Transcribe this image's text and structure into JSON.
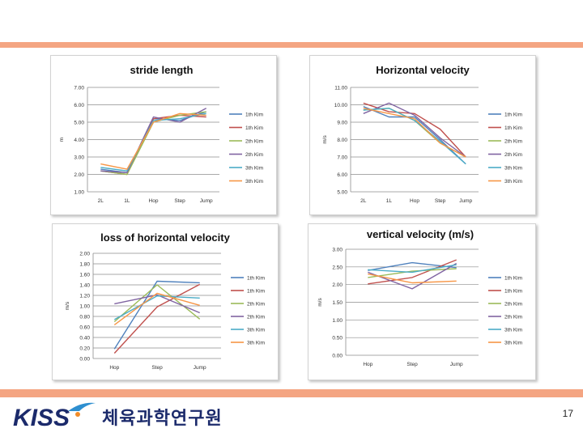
{
  "colors": {
    "top_bar": "#f4a582",
    "bottom_bar": "#f4a582",
    "logo_blue": "#1b2a6b",
    "logo_accent": "#2e8fd0",
    "logo_orange": "#f28c28",
    "series": [
      "#4f81bd",
      "#c0504d",
      "#9bbb59",
      "#8064a2",
      "#4bacc6",
      "#f79646"
    ]
  },
  "logo": {
    "text": "체육과학연구원",
    "wordmark": "KISS"
  },
  "page_number": "17",
  "chart_data": [
    {
      "type": "line",
      "title": "stride length",
      "xlabel": "",
      "ylabel": "m",
      "categories": [
        "2L",
        "1L",
        "Hop",
        "Step",
        "Jump"
      ],
      "ylim": [
        1.0,
        7.0
      ],
      "yticks": [
        "1.00",
        "2.00",
        "3.00",
        "4.00",
        "5.00",
        "6.00",
        "7.00"
      ],
      "series": [
        {
          "name": "1th Kim",
          "values": [
            2.3,
            2.1,
            5.2,
            5.1,
            5.6
          ]
        },
        {
          "name": "1th Kim",
          "values": [
            2.2,
            2.0,
            5.2,
            5.4,
            5.3
          ]
        },
        {
          "name": "2th Kim",
          "values": [
            2.2,
            2.0,
            5.0,
            5.4,
            5.6
          ]
        },
        {
          "name": "2th Kim",
          "values": [
            2.2,
            2.1,
            5.3,
            5.0,
            5.8
          ]
        },
        {
          "name": "3th Kim",
          "values": [
            2.4,
            2.2,
            5.1,
            5.2,
            5.5
          ]
        },
        {
          "name": "3th Kim",
          "values": [
            2.6,
            2.3,
            5.0,
            5.5,
            5.4
          ]
        }
      ]
    },
    {
      "type": "line",
      "title": "Horizontal velocity",
      "xlabel": "",
      "ylabel": "m/s",
      "categories": [
        "2L",
        "1L",
        "Hop",
        "Step",
        "Jump"
      ],
      "ylim": [
        5.0,
        11.0
      ],
      "yticks": [
        "5.00",
        "6.00",
        "7.00",
        "8.00",
        "9.00",
        "10.00",
        "11.00"
      ],
      "series": [
        {
          "name": "1th Kim",
          "values": [
            9.9,
            9.3,
            9.3,
            8.0,
            6.6
          ]
        },
        {
          "name": "1th Kim",
          "values": [
            10.1,
            9.6,
            9.5,
            8.6,
            7.0
          ]
        },
        {
          "name": "2th Kim",
          "values": [
            9.7,
            9.8,
            9.1,
            7.8,
            7.0
          ]
        },
        {
          "name": "2th Kim",
          "values": [
            9.5,
            10.1,
            9.4,
            8.1,
            7.0
          ]
        },
        {
          "name": "3th Kim",
          "values": [
            9.7,
            9.8,
            9.1,
            7.9,
            6.6
          ]
        },
        {
          "name": "3th Kim",
          "values": [
            9.8,
            9.5,
            9.2,
            7.8,
            7.0
          ]
        }
      ]
    },
    {
      "type": "line",
      "title": "loss of horizontal velocity",
      "xlabel": "",
      "ylabel": "m/s",
      "categories": [
        "Hop",
        "Step",
        "Jump"
      ],
      "ylim": [
        0.0,
        2.0
      ],
      "yticks": [
        "0.00",
        "0.20",
        "0.40",
        "0.60",
        "0.80",
        "1.00",
        "1.20",
        "1.40",
        "1.60",
        "1.80",
        "2.00"
      ],
      "series": [
        {
          "name": "1th Kim",
          "values": [
            0.18,
            1.47,
            1.44
          ]
        },
        {
          "name": "1th Kim",
          "values": [
            0.1,
            0.98,
            1.41
          ]
        },
        {
          "name": "2th Kim",
          "values": [
            0.7,
            1.4,
            0.75
          ]
        },
        {
          "name": "2th Kim",
          "values": [
            1.04,
            1.21,
            0.87
          ]
        },
        {
          "name": "3th Kim",
          "values": [
            0.74,
            1.19,
            1.15
          ]
        },
        {
          "name": "3th Kim",
          "values": [
            0.64,
            1.24,
            1.01
          ]
        }
      ]
    },
    {
      "type": "line",
      "title": "vertical velocity (m/s)",
      "xlabel": "",
      "ylabel": "m/s",
      "categories": [
        "Hop",
        "Step",
        "Jump"
      ],
      "ylim": [
        0.0,
        3.0
      ],
      "yticks": [
        "0.00",
        "0.50",
        "1.00",
        "1.50",
        "2.00",
        "2.50",
        "3.00"
      ],
      "series": [
        {
          "name": "1th Kim",
          "values": [
            2.4,
            2.62,
            2.48
          ]
        },
        {
          "name": "1th Kim",
          "values": [
            2.02,
            2.2,
            2.7
          ]
        },
        {
          "name": "2th Kim",
          "values": [
            2.2,
            2.38,
            2.45
          ]
        },
        {
          "name": "2th Kim",
          "values": [
            2.35,
            1.88,
            2.6
          ]
        },
        {
          "name": "3th Kim",
          "values": [
            2.42,
            2.35,
            2.56
          ]
        },
        {
          "name": "3th Kim",
          "values": [
            2.3,
            2.05,
            2.1
          ]
        }
      ]
    }
  ]
}
